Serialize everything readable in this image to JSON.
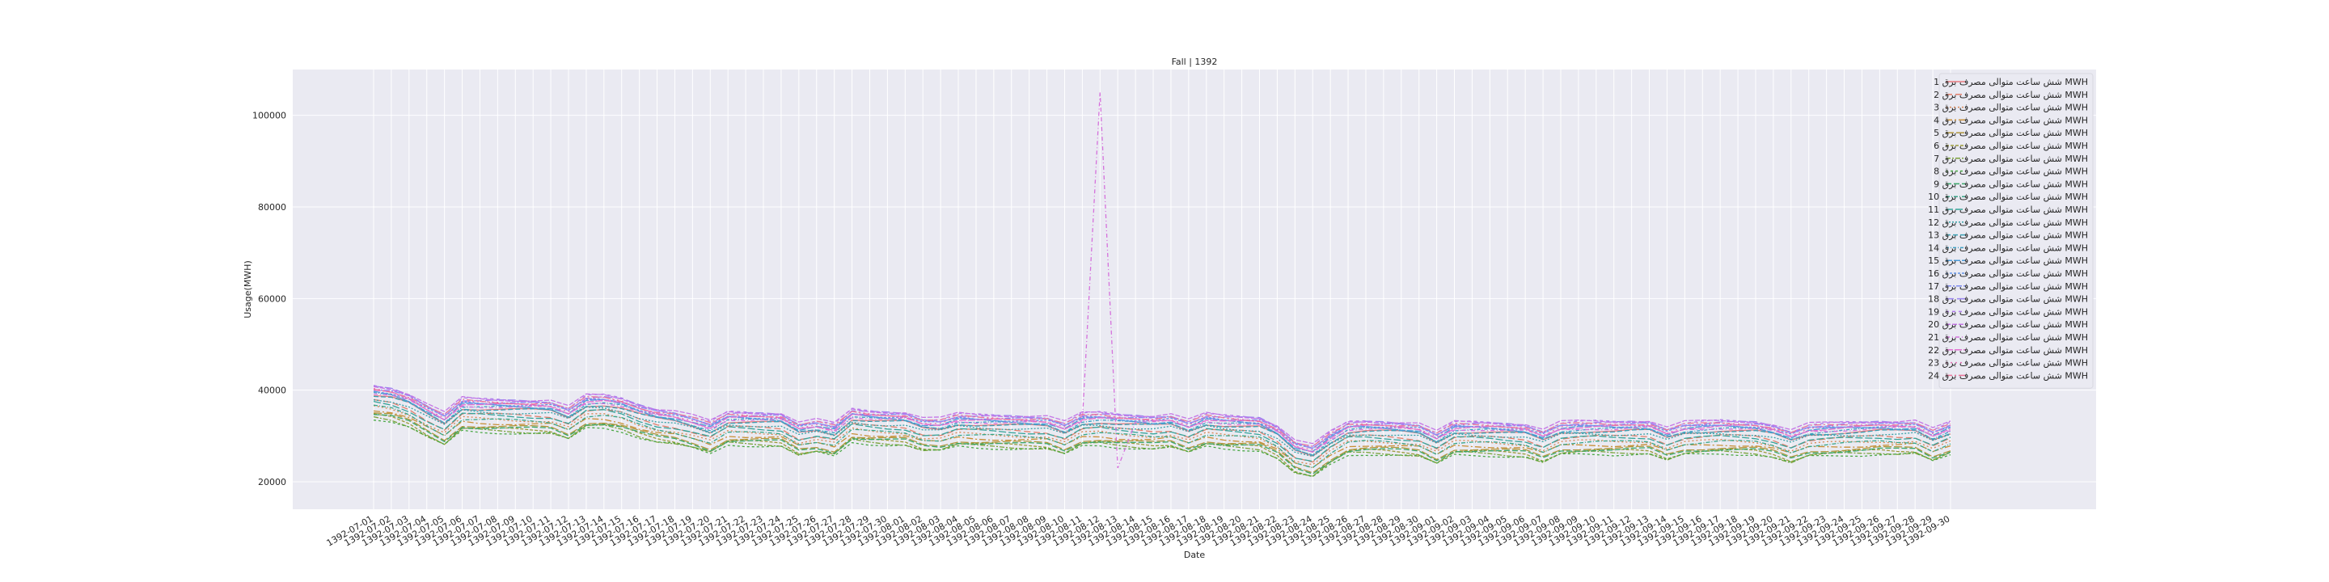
{
  "chart_data": {
    "type": "line",
    "title": "Fall | 1392",
    "xlabel": "Date",
    "ylabel": "Usage(MWH)",
    "ylim": [
      14000,
      110000
    ],
    "yticks": [
      20000,
      40000,
      60000,
      80000,
      100000
    ],
    "grid": true,
    "legend_position": "top-right",
    "background": "#eaeaf2",
    "x": [
      "1392-07-01",
      "1392-07-02",
      "1392-07-03",
      "1392-07-04",
      "1392-07-05",
      "1392-07-06",
      "1392-07-07",
      "1392-07-08",
      "1392-07-09",
      "1392-07-10",
      "1392-07-11",
      "1392-07-12",
      "1392-07-13",
      "1392-07-14",
      "1392-07-15",
      "1392-07-16",
      "1392-07-17",
      "1392-07-18",
      "1392-07-19",
      "1392-07-20",
      "1392-07-21",
      "1392-07-22",
      "1392-07-23",
      "1392-07-24",
      "1392-07-25",
      "1392-07-26",
      "1392-07-27",
      "1392-07-28",
      "1392-07-29",
      "1392-07-30",
      "1392-08-01",
      "1392-08-02",
      "1392-08-03",
      "1392-08-04",
      "1392-08-05",
      "1392-08-06",
      "1392-08-07",
      "1392-08-08",
      "1392-08-09",
      "1392-08-10",
      "1392-08-11",
      "1392-08-12",
      "1392-08-13",
      "1392-08-14",
      "1392-08-15",
      "1392-08-16",
      "1392-08-17",
      "1392-08-18",
      "1392-08-19",
      "1392-08-20",
      "1392-08-21",
      "1392-08-22",
      "1392-08-23",
      "1392-08-24",
      "1392-08-25",
      "1392-08-26",
      "1392-08-27",
      "1392-08-28",
      "1392-08-29",
      "1392-08-30",
      "1392-09-01",
      "1392-09-02",
      "1392-09-03",
      "1392-09-04",
      "1392-09-05",
      "1392-09-06",
      "1392-09-07",
      "1392-09-08",
      "1392-09-09",
      "1392-09-10",
      "1392-09-11",
      "1392-09-12",
      "1392-09-13",
      "1392-09-14",
      "1392-09-15",
      "1392-09-16",
      "1392-09-17",
      "1392-09-18",
      "1392-09-19",
      "1392-09-20",
      "1392-09-21",
      "1392-09-22",
      "1392-09-23",
      "1392-09-24",
      "1392-09-25",
      "1392-09-26",
      "1392-09-27",
      "1392-09-28",
      "1392-09-29",
      "1392-09-30"
    ],
    "base_profile": [
      37000,
      36500,
      35200,
      33000,
      31000,
      34300,
      34100,
      34000,
      33900,
      33800,
      33700,
      32300,
      34900,
      35000,
      34300,
      32900,
      31900,
      31400,
      30400,
      29200,
      31300,
      31200,
      31100,
      31000,
      28900,
      29500,
      28700,
      31900,
      31500,
      31300,
      31200,
      29900,
      29800,
      30900,
      30700,
      30600,
      30500,
      30400,
      30300,
      29000,
      31000,
      31200,
      30800,
      30600,
      30400,
      30700,
      29400,
      30900,
      30500,
      30300,
      30100,
      28300,
      25000,
      24000,
      26900,
      29100,
      29300,
      29200,
      29000,
      28700,
      26900,
      29100,
      29100,
      29000,
      28800,
      28600,
      27300,
      29000,
      29200,
      29300,
      29200,
      29300,
      29300,
      27800,
      29000,
      29200,
      29400,
      29300,
      29200,
      28500,
      27200,
      28600,
      28800,
      29000,
      29100,
      29300,
      29200,
      29300,
      27500,
      29000
    ],
    "series": [
      {
        "name": "شش ساعت متوالی مصرف برق 1 MWH",
        "offset": 1800,
        "color": "#e8797e",
        "dash": ""
      },
      {
        "name": "شش ساعت متوالی مصرف برق 2 MWH",
        "offset": 600,
        "color": "#e27e6a",
        "dash": "8,4"
      },
      {
        "name": "شش ساعت متوالی مصرف برق 3 MWH",
        "offset": -400,
        "color": "#d88752",
        "dash": "2,3"
      },
      {
        "name": "شش ساعت متوالی مصرف برق 4 MWH",
        "offset": -1200,
        "color": "#c88e35",
        "dash": "8,3,2,3"
      },
      {
        "name": "شش ساعت متوالی مصرف برق 5 MWH",
        "offset": -1900,
        "color": "#b0963c",
        "dash": "10,3"
      },
      {
        "name": "شش ساعت متوالی مصرف برق 6 MWH",
        "offset": -2500,
        "color": "#9d9b3a",
        "dash": "4,2"
      },
      {
        "name": "شش ساعت متوالی مصرف برق 7 MWH",
        "offset": -2900,
        "color": "#7ba23a",
        "dash": "6,2,2,2"
      },
      {
        "name": "شش ساعت متوالی مصرف برق 8 MWH",
        "offset": -3200,
        "color": "#4aa845",
        "dash": "3,3"
      },
      {
        "name": "شش ساعت متوالی مصرف برق 9 MWH",
        "offset": -2200,
        "color": "#3aa76a",
        "dash": "7,3"
      },
      {
        "name": "شش ساعت متوالی مصرف برق 10 MWH",
        "offset": -600,
        "color": "#37a588",
        "dash": "5,2,1,2"
      },
      {
        "name": "شش ساعت متوالی مصرف برق 11 MWH",
        "offset": 400,
        "color": "#36a398",
        "dash": "9,3"
      },
      {
        "name": "شش ساعت متوالی مصرف برق 12 MWH",
        "offset": 1200,
        "color": "#38a2a6",
        "dash": "2,2"
      },
      {
        "name": "شش ساعت متوالی مصرف برق 13 MWH",
        "offset": 1800,
        "color": "#3aa1b4",
        "dash": "6,3"
      },
      {
        "name": "شش ساعت متوالی مصرف برق 14 MWH",
        "offset": 2200,
        "color": "#3e9fc4",
        "dash": "4,2,1,2"
      },
      {
        "name": "شش ساعت متوالی مصرف برق 15 MWH",
        "offset": 2600,
        "color": "#4a9ad6",
        "dash": "8,2"
      },
      {
        "name": "شش ساعت متوالی مصرف برق 16 MWH",
        "offset": 3000,
        "color": "#6293e6",
        "dash": "3,2"
      },
      {
        "name": "شش ساعت متوالی مصرف برق 17 MWH",
        "offset": 3300,
        "color": "#7f8bee",
        "dash": "7,2,2,2"
      },
      {
        "name": "شش ساعت متوالی مصرف برق 18 MWH",
        "offset": 3600,
        "color": "#9a84ef",
        "dash": "10,4"
      },
      {
        "name": "شش ساعت متوالی مصرف برق 19 MWH",
        "offset": 3800,
        "color": "#b17ced",
        "dash": "4,4"
      },
      {
        "name": "شش ساعت متوالی مصرف برق 20 MWH",
        "offset": 4000,
        "color": "#c575e6",
        "dash": "6,2"
      },
      {
        "name": "شش ساعت متوالی مصرف برق 21 MWH",
        "offset": 2400,
        "color": "#d571dc",
        "dash": "5,3,1,3",
        "spike_index": 41,
        "spike_value": 105000
      },
      {
        "name": "شش ساعت متوالی مصرف برق 22 MWH",
        "offset": 2800,
        "color": "#e06fcf",
        "dash": "9,2"
      },
      {
        "name": "شش ساعت متوالی مصرف برق 23 MWH",
        "offset": 3100,
        "color": "#e772b7",
        "dash": "2,4"
      },
      {
        "name": "شش ساعت متوالی مصرف برق 24 MWH",
        "offset": 3400,
        "color": "#ea759a",
        "dash": "8,3,2,3"
      }
    ]
  }
}
